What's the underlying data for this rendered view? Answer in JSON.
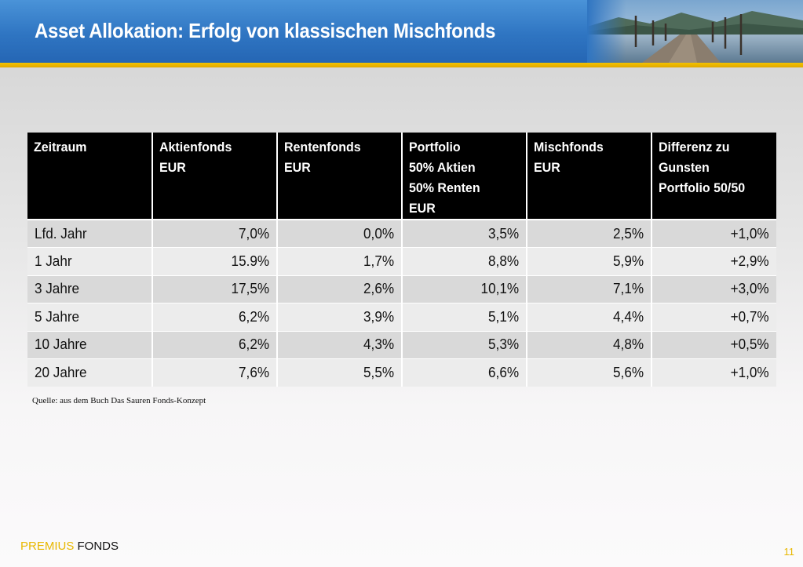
{
  "header": {
    "title": "Asset Allokation: Erfolg von klassischen Mischfonds"
  },
  "table": {
    "headers": [
      [
        "Zeitraum"
      ],
      [
        "Aktienfonds",
        "EUR"
      ],
      [
        "Rentenfonds",
        "EUR"
      ],
      [
        "Portfolio",
        "50% Aktien",
        "50% Renten",
        "EUR"
      ],
      [
        "Mischfonds",
        "EUR"
      ],
      [
        "Differenz zu",
        "Gunsten",
        "Portfolio 50/50"
      ]
    ],
    "rows": [
      [
        "Lfd. Jahr",
        "7,0%",
        "0,0%",
        "3,5%",
        "2,5%",
        "+1,0%"
      ],
      [
        "1 Jahr",
        "15.9%",
        "1,7%",
        "8,8%",
        "5,9%",
        "+2,9%"
      ],
      [
        "3 Jahre",
        "17,5%",
        "2,6%",
        "10,1%",
        "7,1%",
        "+3,0%"
      ],
      [
        "5 Jahre",
        "6,2%",
        "3,9%",
        "5,1%",
        "4,4%",
        "+0,7%"
      ],
      [
        "10 Jahre",
        "6,2%",
        "4,3%",
        "5,3%",
        "4,8%",
        "+0,5%"
      ],
      [
        "20 Jahre",
        "7,6%",
        "5,5%",
        "6,6%",
        "5,6%",
        "+1,0%"
      ]
    ]
  },
  "source": "Quelle: aus dem Buch Das Sauren Fonds-Konzept",
  "footer": {
    "brand_part1": "PREMIUS",
    "brand_part2": "FONDS",
    "page_number": "11"
  },
  "colors": {
    "header_blue": "#2f75c2",
    "accent_gold": "#e8b800",
    "table_header": "#000000"
  }
}
